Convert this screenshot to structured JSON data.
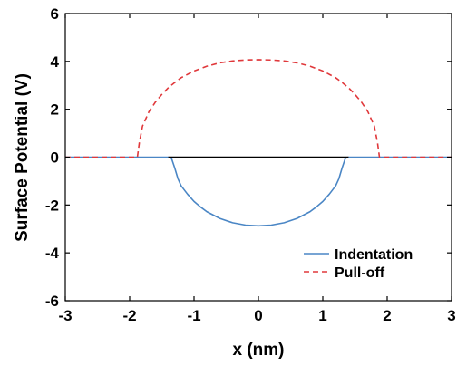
{
  "chart_data": {
    "type": "line",
    "title": "",
    "xlabel": "x (nm)",
    "ylabel": "Surface Potential (V)",
    "xlim": [
      -3,
      3
    ],
    "ylim": [
      -6,
      6
    ],
    "x_ticks": [
      -3,
      -2,
      -1,
      0,
      1,
      2,
      3
    ],
    "y_ticks": [
      -6,
      -4,
      -2,
      0,
      2,
      4,
      6
    ],
    "x_tick_labels": [
      "-3",
      "-2",
      "-1",
      "0",
      "1",
      "2",
      "3"
    ],
    "y_tick_labels": [
      "-6",
      "-4",
      "-2",
      "0",
      "2",
      "4",
      "6"
    ],
    "grid": false,
    "legend_position": "bottom-right",
    "series": [
      {
        "name": "Indentation",
        "color": "#4a86c5",
        "style": "solid",
        "x": [
          -3,
          -1.4,
          -1.35,
          -1.3,
          -1.25,
          -1.2,
          -1.1,
          -1.0,
          -0.9,
          -0.8,
          -0.6,
          -0.4,
          -0.2,
          0,
          0.2,
          0.4,
          0.6,
          0.8,
          0.9,
          1.0,
          1.1,
          1.2,
          1.25,
          1.3,
          1.35,
          1.4,
          3
        ],
        "y": [
          0,
          0,
          -0.05,
          -0.45,
          -0.9,
          -1.2,
          -1.55,
          -1.85,
          -2.08,
          -2.28,
          -2.56,
          -2.74,
          -2.84,
          -2.87,
          -2.84,
          -2.74,
          -2.56,
          -2.28,
          -2.08,
          -1.85,
          -1.55,
          -1.2,
          -0.9,
          -0.45,
          -0.05,
          0,
          0
        ]
      },
      {
        "name": "Pull-off",
        "color": "#e0383b",
        "style": "dashed",
        "x": [
          -3,
          -1.88,
          -1.85,
          -1.8,
          -1.7,
          -1.6,
          -1.5,
          -1.4,
          -1.3,
          -1.2,
          -1.0,
          -0.8,
          -0.6,
          -0.4,
          -0.2,
          0,
          0.2,
          0.4,
          0.6,
          0.8,
          1.0,
          1.2,
          1.3,
          1.4,
          1.5,
          1.6,
          1.7,
          1.8,
          1.85,
          1.88,
          3
        ],
        "y": [
          0,
          0,
          0.6,
          1.3,
          1.9,
          2.3,
          2.62,
          2.9,
          3.12,
          3.32,
          3.6,
          3.8,
          3.94,
          4.02,
          4.06,
          4.07,
          4.06,
          4.02,
          3.94,
          3.8,
          3.6,
          3.32,
          3.12,
          2.9,
          2.62,
          2.3,
          1.9,
          1.3,
          0.6,
          0,
          0
        ]
      },
      {
        "color": "#000000",
        "style": "solid",
        "x": [
          -1.4,
          1.4
        ],
        "y": [
          0,
          0
        ]
      }
    ]
  }
}
